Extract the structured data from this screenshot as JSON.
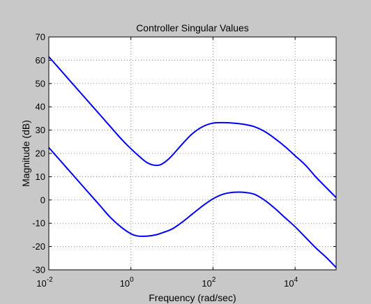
{
  "chart_data": {
    "type": "line",
    "title": "Controller Singular Values",
    "xlabel": "Frequency (rad/sec)",
    "ylabel": "Magnitude (dB)",
    "xscale": "log",
    "xlim": [
      0.01,
      100000
    ],
    "ylim": [
      -30,
      70
    ],
    "grid": true,
    "yticks": [
      "-30",
      "-20",
      "-10",
      "0",
      "10",
      "20",
      "30",
      "40",
      "50",
      "60",
      "70"
    ],
    "xticks": [
      {
        "base": "10",
        "exp": "-2",
        "value": 0.01
      },
      {
        "base": "10",
        "exp": "0",
        "value": 1
      },
      {
        "base": "10",
        "exp": "2",
        "value": 100
      },
      {
        "base": "10",
        "exp": "4",
        "value": 10000
      }
    ],
    "colors": {
      "series": "#0000ff",
      "background": "#c8c8c8",
      "plot_area": "#ffffff"
    },
    "series": [
      {
        "x": [
          0.01,
          0.0178,
          0.0316,
          0.0562,
          0.1,
          0.178,
          0.316,
          0.562,
          1,
          1.78,
          2.5,
          3.5,
          5,
          7,
          10,
          17.8,
          31.6,
          56.2,
          100,
          178,
          316,
          562,
          1000,
          1780,
          3160,
          5620,
          10000,
          17800,
          31600,
          56200,
          100000
        ],
        "values": [
          61.5,
          56.5,
          51.5,
          46.5,
          41.5,
          36.5,
          31.5,
          26.5,
          22,
          18,
          16,
          15,
          15,
          16.5,
          19,
          24,
          28.5,
          31.5,
          33,
          33.2,
          33,
          32.5,
          31.5,
          29.5,
          26.5,
          23,
          19,
          15,
          10,
          5.5,
          1
        ]
      },
      {
        "x": [
          0.01,
          0.0178,
          0.0316,
          0.0562,
          0.1,
          0.178,
          0.316,
          0.562,
          1,
          1.5,
          2.5,
          4,
          6,
          10,
          17.8,
          31.6,
          56.2,
          100,
          178,
          316,
          562,
          1000,
          1780,
          3160,
          5620,
          10000,
          17800,
          31600,
          56200,
          100000
        ],
        "values": [
          22.5,
          17.5,
          12.5,
          7.5,
          2.5,
          -2.5,
          -7.5,
          -11.5,
          -14.5,
          -15.5,
          -15.5,
          -15,
          -14,
          -12.5,
          -9.5,
          -6,
          -2.5,
          0.5,
          2.5,
          3.3,
          3.3,
          2.5,
          0,
          -3.5,
          -7.5,
          -11.5,
          -16,
          -20.5,
          -24.5,
          -29
        ]
      }
    ]
  }
}
